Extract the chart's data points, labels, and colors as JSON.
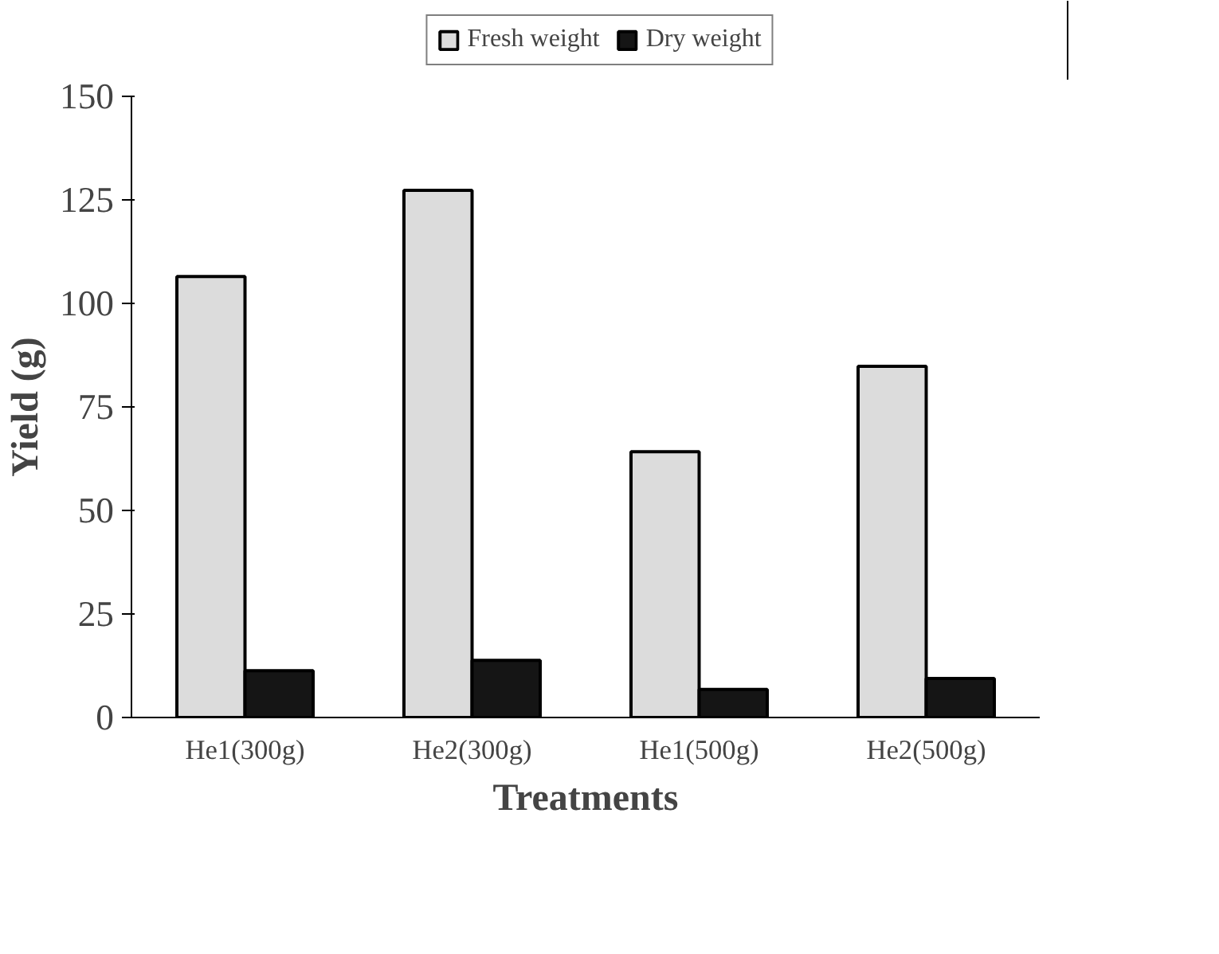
{
  "chart_data": {
    "type": "bar",
    "xlabel": "Treatments",
    "ylabel": "Yield (g)",
    "categories": [
      "He1(300g)",
      "He2(300g)",
      "He1(500g)",
      "He2(500g)"
    ],
    "series": [
      {
        "name": "Fresh weight",
        "color": "#dcdcdc",
        "values": [
          106.5,
          127.3,
          64.2,
          84.8
        ]
      },
      {
        "name": "Dry weight",
        "color": "#151515",
        "values": [
          11.3,
          13.8,
          6.8,
          9.4
        ]
      }
    ],
    "ylim": [
      0,
      150
    ],
    "yticks": [
      0,
      25,
      50,
      75,
      100,
      125,
      150
    ],
    "grid": false,
    "legend": "top"
  }
}
